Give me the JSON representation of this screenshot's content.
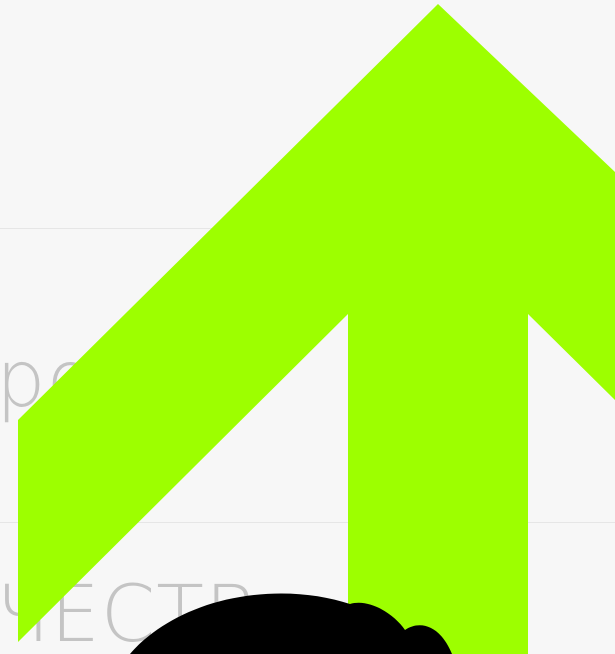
{
  "fragments": [
    "ро",
    "ЧЕСТВ"
  ]
}
